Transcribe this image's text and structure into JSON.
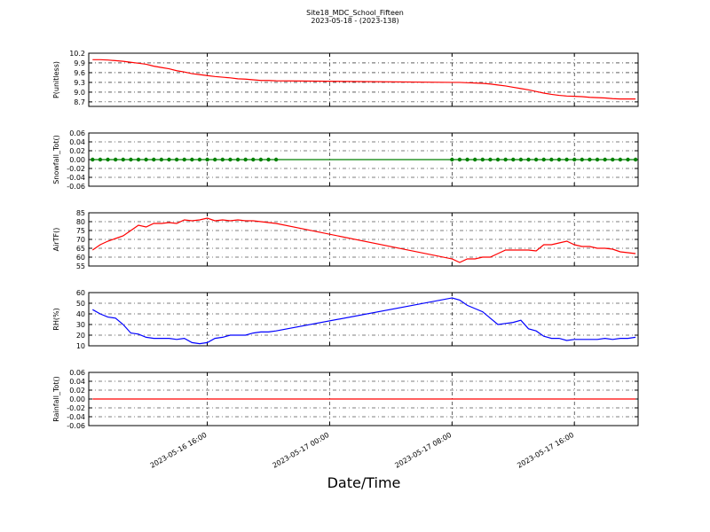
{
  "chart_data": {
    "type": "line",
    "title": "Site18_MDC_School_Fifteen",
    "subtitle": "2023-05-18 - (2023-138)",
    "xlabel": "Date/Time",
    "xlim": [
      "2023-05-16 08:15",
      "2023-05-17 20:10"
    ],
    "xticks": [
      "2023-05-16 16:00",
      "2023-05-17 00:00",
      "2023-05-17 08:00",
      "2023-05-17 16:00"
    ],
    "grid": true,
    "x": [
      "2023-05-16 08:30",
      "2023-05-16 09:00",
      "2023-05-16 09:30",
      "2023-05-16 10:00",
      "2023-05-16 10:30",
      "2023-05-16 11:00",
      "2023-05-16 11:30",
      "2023-05-16 12:00",
      "2023-05-16 12:30",
      "2023-05-16 13:00",
      "2023-05-16 13:30",
      "2023-05-16 14:00",
      "2023-05-16 14:30",
      "2023-05-16 15:00",
      "2023-05-16 15:30",
      "2023-05-16 16:00",
      "2023-05-16 16:30",
      "2023-05-16 17:00",
      "2023-05-16 17:30",
      "2023-05-16 18:00",
      "2023-05-16 18:30",
      "2023-05-16 19:00",
      "2023-05-16 19:30",
      "2023-05-16 20:00",
      "2023-05-16 20:30",
      "2023-05-17 08:00",
      "2023-05-17 08:30",
      "2023-05-17 09:00",
      "2023-05-17 09:30",
      "2023-05-17 10:00",
      "2023-05-17 10:30",
      "2023-05-17 11:00",
      "2023-05-17 11:30",
      "2023-05-17 12:00",
      "2023-05-17 12:30",
      "2023-05-17 13:00",
      "2023-05-17 13:30",
      "2023-05-17 14:00",
      "2023-05-17 14:30",
      "2023-05-17 15:00",
      "2023-05-17 15:30",
      "2023-05-17 16:00",
      "2023-05-17 16:30",
      "2023-05-17 17:00",
      "2023-05-17 17:30",
      "2023-05-17 18:00",
      "2023-05-17 18:30",
      "2023-05-17 19:00",
      "2023-05-17 19:30",
      "2023-05-17 20:00"
    ],
    "panels": [
      {
        "ylabel": "P(unitless)",
        "ylim": [
          8.56,
          10.2
        ],
        "yticks": [
          10.2,
          9.9,
          9.6,
          9.3,
          {
            "value": 9,
            "label": "9.0"
          },
          8.7
        ],
        "series": [
          {
            "color": "#ff0000",
            "markers": false,
            "values": [
              10.0,
              10.0,
              9.99,
              9.97,
              9.95,
              9.92,
              9.89,
              9.86,
              9.8,
              9.76,
              9.72,
              9.66,
              9.62,
              9.57,
              9.54,
              9.51,
              9.48,
              9.46,
              9.44,
              9.41,
              9.4,
              9.38,
              9.36,
              9.36,
              9.35,
              9.3,
              9.3,
              9.29,
              9.28,
              9.27,
              9.25,
              9.22,
              9.19,
              9.15,
              9.11,
              9.07,
              9.02,
              8.97,
              8.93,
              8.9,
              8.88,
              8.87,
              8.86,
              8.84,
              8.83,
              8.82,
              8.8,
              8.79,
              8.79,
              8.79
            ]
          }
        ]
      },
      {
        "ylabel": "Snowfall_Tot()",
        "ylim": [
          -0.06,
          0.06
        ],
        "yticks": [
          0.06,
          0.04,
          0.02,
          {
            "value": 0,
            "label": "0.00"
          },
          -0.02,
          -0.04,
          -0.06
        ],
        "series": [
          {
            "color": "#008000",
            "markers": true,
            "values": [
              0,
              0,
              0,
              0,
              0,
              0,
              0,
              0,
              0,
              0,
              0,
              0,
              0,
              0,
              0,
              0,
              0,
              0,
              0,
              0,
              0,
              0,
              0,
              0,
              0,
              0,
              0,
              0,
              0,
              0,
              0,
              0,
              0,
              0,
              0,
              0,
              0,
              0,
              0,
              0,
              0,
              0,
              0,
              0,
              0,
              0,
              0,
              0,
              0,
              0
            ]
          }
        ]
      },
      {
        "ylabel": "AirTF()",
        "ylim": [
          55,
          85
        ],
        "yticks": [
          85,
          80,
          75,
          70,
          65,
          60,
          55
        ],
        "series": [
          {
            "color": "#ff0000",
            "markers": false,
            "values": [
              64,
              67,
              69,
              70.5,
              72,
              75,
              78,
              77,
              79,
              79,
              79.5,
              79,
              81,
              80.5,
              81,
              82,
              80.5,
              81,
              80.5,
              81,
              80.5,
              80.5,
              80,
              79.5,
              79,
              59,
              57,
              59,
              59,
              60,
              60,
              62,
              64,
              64,
              64,
              64,
              63.5,
              67,
              67,
              68,
              69,
              67,
              66,
              66,
              65,
              65,
              64.5,
              63,
              62.5,
              62
            ]
          }
        ]
      },
      {
        "ylabel": "RH(%)",
        "ylim": [
          10,
          60
        ],
        "yticks": [
          60,
          50,
          40,
          30,
          20,
          10
        ],
        "series": [
          {
            "color": "#0000ff",
            "markers": false,
            "values": [
              44,
              40,
              37,
              36,
              30,
              22,
              21,
              18,
              17,
              17,
              17,
              16,
              17,
              13,
              12,
              13,
              17,
              18,
              20,
              20,
              20,
              22,
              23,
              23,
              24,
              55,
              53,
              48,
              45,
              42,
              36,
              30,
              31,
              32,
              34,
              26,
              24,
              19,
              17,
              17,
              15,
              16,
              16,
              16,
              16,
              17,
              16,
              17,
              17,
              18
            ]
          }
        ]
      },
      {
        "ylabel": "Rainfall_Tot()",
        "ylim": [
          -0.06,
          0.06
        ],
        "yticks": [
          0.06,
          0.04,
          0.02,
          {
            "value": 0,
            "label": "0.00"
          },
          -0.02,
          -0.04,
          -0.06
        ],
        "series": [
          {
            "color": "#ff0000",
            "markers": false,
            "values": [
              0,
              0,
              0,
              0,
              0,
              0,
              0,
              0,
              0,
              0,
              0,
              0,
              0,
              0,
              0,
              0,
              0,
              0,
              0,
              0,
              0,
              0,
              0,
              0,
              0,
              0,
              0,
              0,
              0,
              0,
              0,
              0,
              0,
              0,
              0,
              0,
              0,
              0,
              0,
              0,
              0,
              0,
              0,
              0,
              0,
              0,
              0,
              0,
              0,
              0
            ]
          }
        ]
      }
    ]
  }
}
